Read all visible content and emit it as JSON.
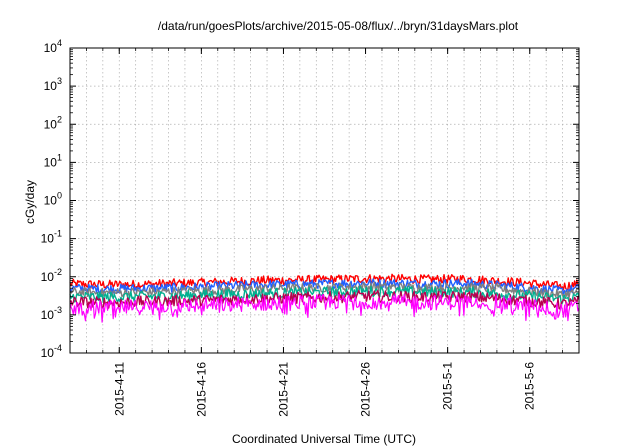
{
  "chart_data": {
    "type": "line",
    "title": "/data/run/goesPlots/archive/2015-05-08/flux/../bryn/31daysMars.plot",
    "xlabel": "Coordinated Universal Time (UTC)",
    "ylabel": "cGy/day",
    "yscale": "log",
    "ylim": [
      0.0001,
      10000
    ],
    "ytick_labels": [
      {
        "base": "10",
        "exp": "-4",
        "value": 0.0001
      },
      {
        "base": "10",
        "exp": "-3",
        "value": 0.001
      },
      {
        "base": "10",
        "exp": "-2",
        "value": 0.01
      },
      {
        "base": "10",
        "exp": "-1",
        "value": 0.1
      },
      {
        "base": "10",
        "exp": "0",
        "value": 1
      },
      {
        "base": "10",
        "exp": "1",
        "value": 10
      },
      {
        "base": "10",
        "exp": "2",
        "value": 100
      },
      {
        "base": "10",
        "exp": "3",
        "value": 1000
      },
      {
        "base": "10",
        "exp": "4",
        "value": 10000
      }
    ],
    "xlim": [
      "2015-04-08",
      "2015-05-09"
    ],
    "xtick_labels": [
      "2015-4-11",
      "2015-4-16",
      "2015-4-21",
      "2015-4-26",
      "2015-5-1",
      "2015-5-6"
    ],
    "xtick_values": [
      "2015-04-11",
      "2015-04-16",
      "2015-04-21",
      "2015-04-26",
      "2015-05-01",
      "2015-05-06"
    ],
    "grid": true,
    "x": [
      "2015-04-08",
      "2015-04-10",
      "2015-04-12",
      "2015-04-14",
      "2015-04-16",
      "2015-04-18",
      "2015-04-20",
      "2015-04-22",
      "2015-04-24",
      "2015-04-26",
      "2015-04-28",
      "2015-04-30",
      "2015-05-02",
      "2015-05-04",
      "2015-05-06",
      "2015-05-08",
      "2015-05-09"
    ],
    "series": [
      {
        "color": "#ff0000",
        "values": [
          0.0065,
          0.0062,
          0.0063,
          0.0066,
          0.007,
          0.0075,
          0.008,
          0.0082,
          0.0085,
          0.009,
          0.0088,
          0.0085,
          0.0088,
          0.0078,
          0.0068,
          0.0055,
          0.0065
        ]
      },
      {
        "color": "#1f5fff",
        "values": [
          0.005,
          0.0048,
          0.0049,
          0.0051,
          0.0054,
          0.0058,
          0.0062,
          0.0063,
          0.0066,
          0.0069,
          0.0067,
          0.0065,
          0.0067,
          0.006,
          0.0052,
          0.0042,
          0.005
        ]
      },
      {
        "color": "#7f7f7f",
        "values": [
          0.004,
          0.0038,
          0.0039,
          0.0041,
          0.0043,
          0.0046,
          0.0049,
          0.005,
          0.0052,
          0.0055,
          0.0053,
          0.0051,
          0.0053,
          0.0048,
          0.0041,
          0.0034,
          0.004
        ]
      },
      {
        "color": "#00b090",
        "values": [
          0.003,
          0.0029,
          0.003,
          0.0031,
          0.0033,
          0.0035,
          0.0037,
          0.0038,
          0.004,
          0.0042,
          0.0041,
          0.0039,
          0.004,
          0.0036,
          0.0031,
          0.0026,
          0.003
        ]
      },
      {
        "color": "#b8004f",
        "values": [
          0.0022,
          0.0021,
          0.0022,
          0.0023,
          0.0024,
          0.0026,
          0.0027,
          0.0028,
          0.0029,
          0.0031,
          0.003,
          0.0029,
          0.003,
          0.0027,
          0.0023,
          0.0019,
          0.0022
        ]
      },
      {
        "color": "#ff00ff",
        "values": [
          0.0016,
          0.0015,
          0.0016,
          0.0017,
          0.0018,
          0.0019,
          0.002,
          0.0021,
          0.0022,
          0.0023,
          0.0022,
          0.0021,
          0.0022,
          0.002,
          0.0017,
          0.0013,
          0.0016
        ]
      }
    ]
  }
}
